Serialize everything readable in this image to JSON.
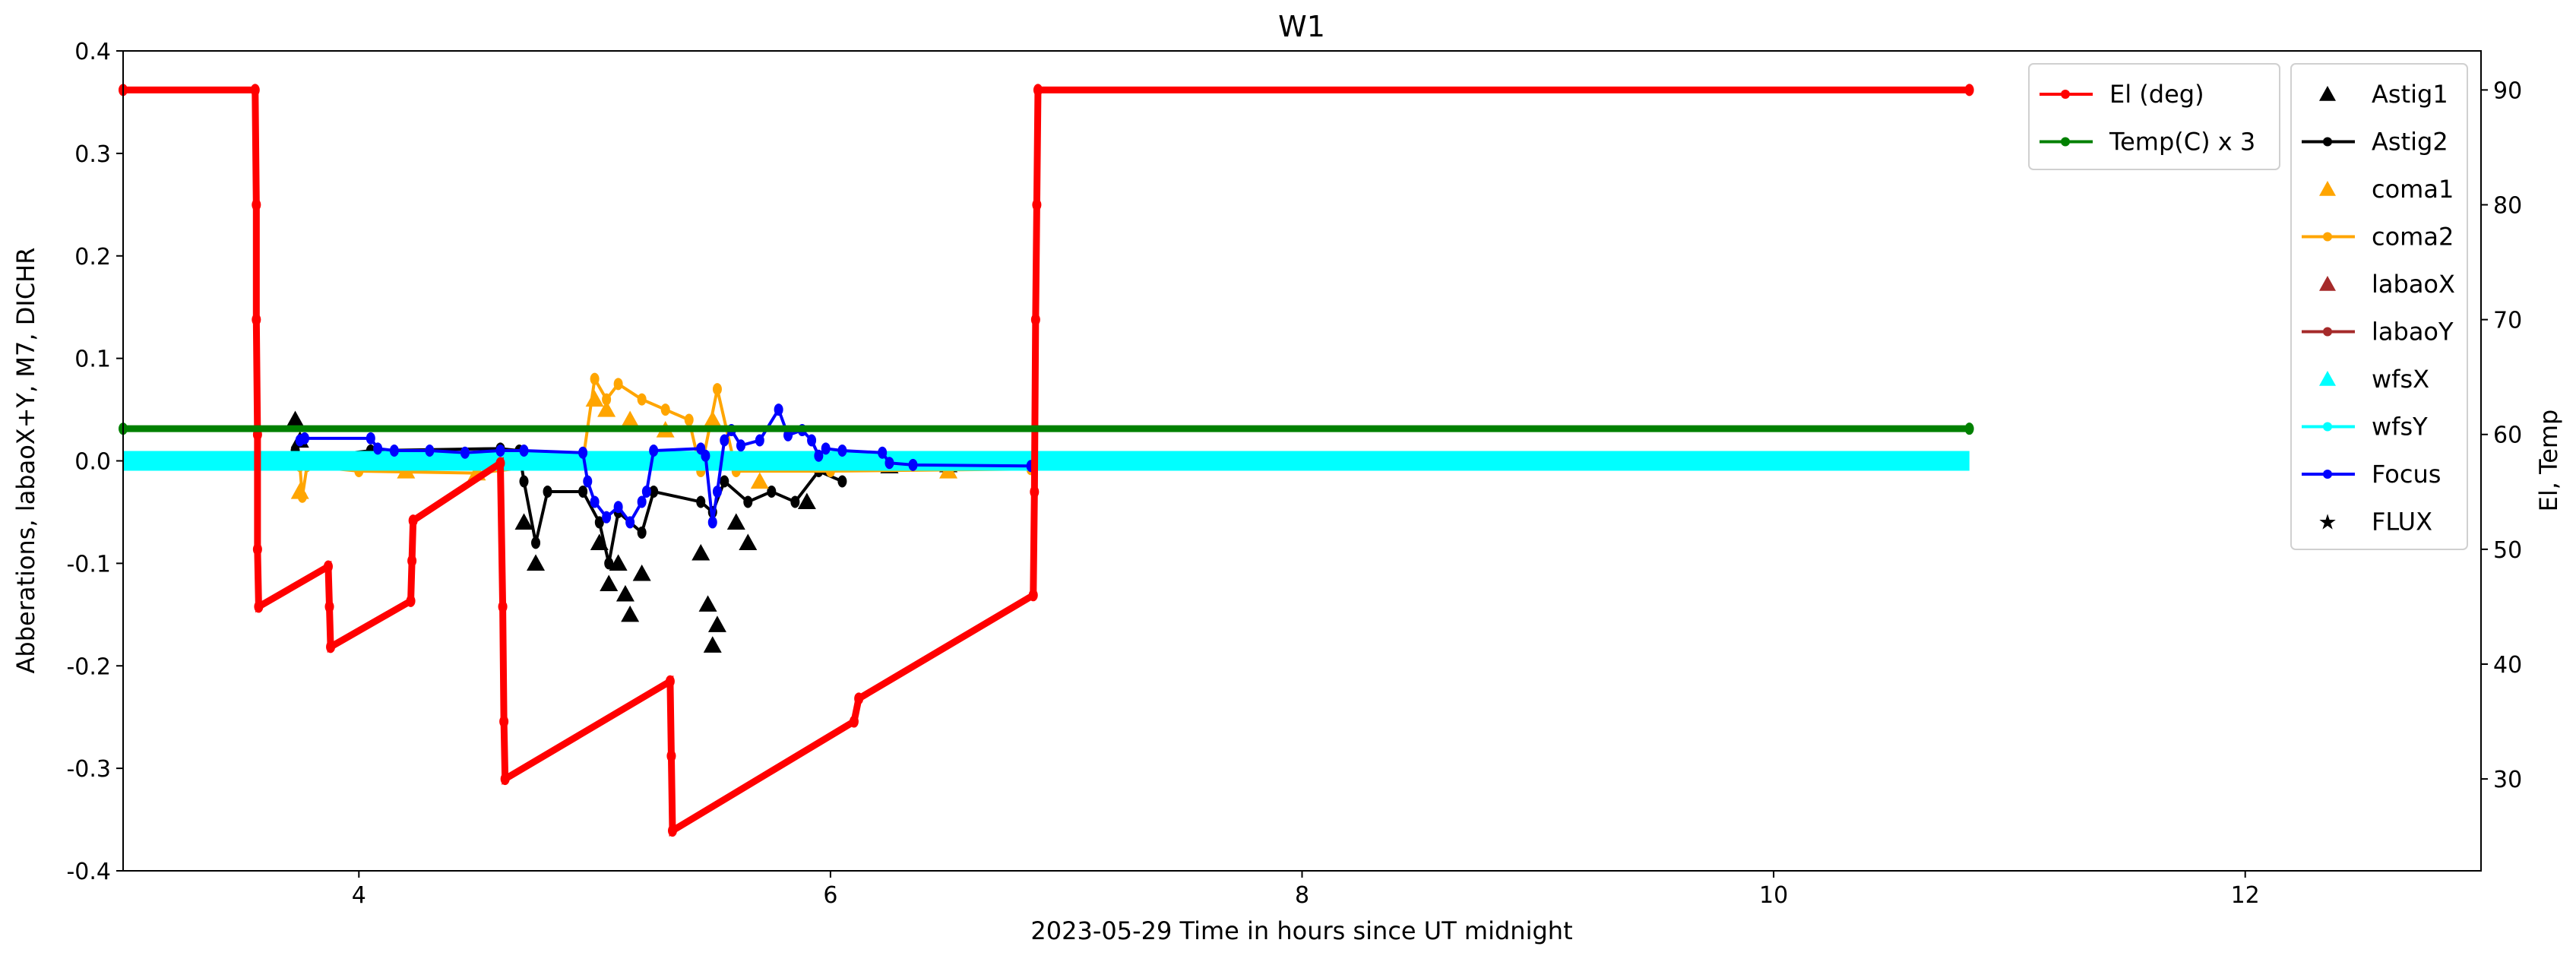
{
  "chart_data": {
    "type": "line",
    "title": "W1",
    "xlabel": "2023-05-29  Time in hours since UT midnight",
    "ylabel": "Abberations, labaoX+Y, M7, DICHR",
    "y2label": "El, Temp",
    "xlim": [
      3,
      13
    ],
    "ylim": [
      -0.4,
      0.4
    ],
    "y2lim": [
      22,
      93.4
    ],
    "xticks": [
      4,
      6,
      8,
      10,
      12
    ],
    "yticks": [
      -0.4,
      -0.3,
      -0.2,
      -0.1,
      0.0,
      0.1,
      0.2,
      0.3,
      0.4
    ],
    "y2ticks": [
      30,
      40,
      50,
      60,
      70,
      80,
      90
    ],
    "grid": false,
    "legend_placement": "top-right",
    "series": [
      {
        "name": "Astig1",
        "axis": "left",
        "color": "#000000",
        "style": "triangle",
        "points": [
          [
            3.73,
            0.04
          ],
          [
            3.75,
            0.02
          ],
          [
            4.7,
            -0.06
          ],
          [
            4.75,
            -0.1
          ],
          [
            5.02,
            -0.08
          ],
          [
            5.06,
            -0.12
          ],
          [
            5.1,
            -0.1
          ],
          [
            5.13,
            -0.13
          ],
          [
            5.15,
            -0.15
          ],
          [
            5.2,
            -0.11
          ],
          [
            5.45,
            -0.09
          ],
          [
            5.48,
            -0.14
          ],
          [
            5.5,
            -0.18
          ],
          [
            5.52,
            -0.16
          ],
          [
            5.6,
            -0.06
          ],
          [
            5.65,
            -0.08
          ],
          [
            5.9,
            -0.04
          ],
          [
            6.25,
            -0.005
          ],
          [
            6.5,
            -0.004
          ]
        ]
      },
      {
        "name": "Astig2",
        "axis": "left",
        "color": "#000000",
        "style": "line",
        "points": [
          [
            3.73,
            0.01
          ],
          [
            3.76,
            0.002
          ],
          [
            4.05,
            0.01
          ],
          [
            4.6,
            0.012
          ],
          [
            4.68,
            0.01
          ],
          [
            4.7,
            -0.02
          ],
          [
            4.75,
            -0.08
          ],
          [
            4.8,
            -0.03
          ],
          [
            4.95,
            -0.03
          ],
          [
            5.02,
            -0.06
          ],
          [
            5.06,
            -0.1
          ],
          [
            5.1,
            -0.05
          ],
          [
            5.2,
            -0.07
          ],
          [
            5.25,
            -0.03
          ],
          [
            5.45,
            -0.04
          ],
          [
            5.5,
            -0.05
          ],
          [
            5.55,
            -0.02
          ],
          [
            5.65,
            -0.04
          ],
          [
            5.75,
            -0.03
          ],
          [
            5.85,
            -0.04
          ],
          [
            5.95,
            -0.01
          ],
          [
            6.05,
            -0.02
          ]
        ]
      },
      {
        "name": "coma1",
        "axis": "left",
        "color": "#ffa500",
        "style": "triangle",
        "points": [
          [
            3.75,
            -0.03
          ],
          [
            4.2,
            -0.01
          ],
          [
            4.5,
            -0.012
          ],
          [
            5.0,
            0.06
          ],
          [
            5.05,
            0.05
          ],
          [
            5.15,
            0.04
          ],
          [
            5.3,
            0.03
          ],
          [
            5.5,
            0.04
          ],
          [
            5.7,
            -0.02
          ],
          [
            6.5,
            -0.01
          ]
        ]
      },
      {
        "name": "coma2",
        "axis": "left",
        "color": "#ffa500",
        "style": "line",
        "points": [
          [
            3.75,
            -0.005
          ],
          [
            3.76,
            -0.035
          ],
          [
            3.78,
            -0.005
          ],
          [
            4.0,
            -0.01
          ],
          [
            4.5,
            -0.012
          ],
          [
            4.95,
            0.0
          ],
          [
            5.0,
            0.08
          ],
          [
            5.05,
            0.06
          ],
          [
            5.1,
            0.075
          ],
          [
            5.2,
            0.06
          ],
          [
            5.3,
            0.05
          ],
          [
            5.4,
            0.04
          ],
          [
            5.45,
            -0.01
          ],
          [
            5.52,
            0.07
          ],
          [
            5.6,
            -0.01
          ],
          [
            6.0,
            -0.01
          ],
          [
            6.85,
            -0.008
          ]
        ]
      },
      {
        "name": "labaoX",
        "axis": "left",
        "color": "#a52a2a",
        "style": "triangle",
        "points": []
      },
      {
        "name": "labaoY",
        "axis": "left",
        "color": "#a52a2a",
        "style": "line",
        "points": []
      },
      {
        "name": "wfsX",
        "axis": "left",
        "color": "#00ffff",
        "style": "band",
        "points": [
          [
            3.0,
            0.0
          ],
          [
            10.83,
            0.0
          ]
        ]
      },
      {
        "name": "wfsY",
        "axis": "left",
        "color": "#00ffff",
        "style": "band",
        "points": [
          [
            3.0,
            0.0
          ],
          [
            10.83,
            0.0
          ]
        ]
      },
      {
        "name": "Focus",
        "axis": "left",
        "color": "#0000ff",
        "style": "line",
        "points": [
          [
            3.75,
            0.02
          ],
          [
            3.77,
            0.022
          ],
          [
            4.05,
            0.022
          ],
          [
            4.08,
            0.012
          ],
          [
            4.15,
            0.01
          ],
          [
            4.3,
            0.01
          ],
          [
            4.45,
            0.008
          ],
          [
            4.6,
            0.01
          ],
          [
            4.7,
            0.01
          ],
          [
            4.95,
            0.008
          ],
          [
            4.97,
            -0.02
          ],
          [
            5.0,
            -0.04
          ],
          [
            5.05,
            -0.055
          ],
          [
            5.1,
            -0.045
          ],
          [
            5.15,
            -0.06
          ],
          [
            5.2,
            -0.04
          ],
          [
            5.22,
            -0.03
          ],
          [
            5.25,
            0.01
          ],
          [
            5.45,
            0.012
          ],
          [
            5.47,
            0.005
          ],
          [
            5.5,
            -0.06
          ],
          [
            5.52,
            -0.03
          ],
          [
            5.55,
            0.02
          ],
          [
            5.58,
            0.03
          ],
          [
            5.62,
            0.015
          ],
          [
            5.7,
            0.02
          ],
          [
            5.78,
            0.05
          ],
          [
            5.82,
            0.025
          ],
          [
            5.88,
            0.03
          ],
          [
            5.92,
            0.02
          ],
          [
            5.95,
            0.005
          ],
          [
            5.98,
            0.012
          ],
          [
            6.05,
            0.01
          ],
          [
            6.22,
            0.008
          ],
          [
            6.25,
            -0.002
          ],
          [
            6.35,
            -0.004
          ],
          [
            6.85,
            -0.005
          ]
        ]
      },
      {
        "name": "FLUX",
        "axis": "left",
        "color": "#0000ff",
        "style": "star",
        "points": []
      },
      {
        "name": "El (deg)",
        "axis": "right",
        "color": "#ff0000",
        "style": "line",
        "points": [
          [
            3.0,
            90
          ],
          [
            3.56,
            90
          ],
          [
            3.565,
            80
          ],
          [
            3.565,
            70
          ],
          [
            3.57,
            60
          ],
          [
            3.57,
            50
          ],
          [
            3.575,
            45
          ],
          [
            3.87,
            48.5
          ],
          [
            3.875,
            45
          ],
          [
            3.88,
            41.5
          ],
          [
            4.22,
            45.5
          ],
          [
            4.225,
            49
          ],
          [
            4.23,
            52.5
          ],
          [
            4.6,
            57.5
          ],
          [
            4.61,
            45
          ],
          [
            4.615,
            35
          ],
          [
            4.62,
            30
          ],
          [
            5.32,
            38.5
          ],
          [
            5.325,
            32
          ],
          [
            5.33,
            25.5
          ],
          [
            6.1,
            35
          ],
          [
            6.12,
            37
          ],
          [
            6.86,
            46
          ],
          [
            6.865,
            55
          ],
          [
            6.87,
            70
          ],
          [
            6.875,
            80
          ],
          [
            6.88,
            90
          ],
          [
            10.83,
            90
          ]
        ]
      },
      {
        "name": "Temp(C) x 3",
        "axis": "right",
        "color": "#008000",
        "style": "line",
        "points": [
          [
            3.0,
            60.5
          ],
          [
            10.83,
            60.5
          ]
        ]
      }
    ],
    "legend1": [
      {
        "label": "El (deg)",
        "color": "#ff0000",
        "marker": "line"
      },
      {
        "label": "Temp(C) x 3",
        "color": "#008000",
        "marker": "line"
      }
    ],
    "legend2": [
      {
        "label": "Astig1",
        "color": "#000000",
        "marker": "triangle"
      },
      {
        "label": "Astig2",
        "color": "#000000",
        "marker": "line"
      },
      {
        "label": "coma1",
        "color": "#ffa500",
        "marker": "triangle"
      },
      {
        "label": "coma2",
        "color": "#ffa500",
        "marker": "line"
      },
      {
        "label": "labaoX",
        "color": "#a52a2a",
        "marker": "triangle"
      },
      {
        "label": "labaoY",
        "color": "#a52a2a",
        "marker": "line"
      },
      {
        "label": "wfsX",
        "color": "#00ffff",
        "marker": "triangle"
      },
      {
        "label": "wfsY",
        "color": "#00ffff",
        "marker": "line"
      },
      {
        "label": "Focus",
        "color": "#0000ff",
        "marker": "line"
      },
      {
        "label": "FLUX",
        "color": "#0000ff",
        "marker": "star"
      }
    ]
  }
}
